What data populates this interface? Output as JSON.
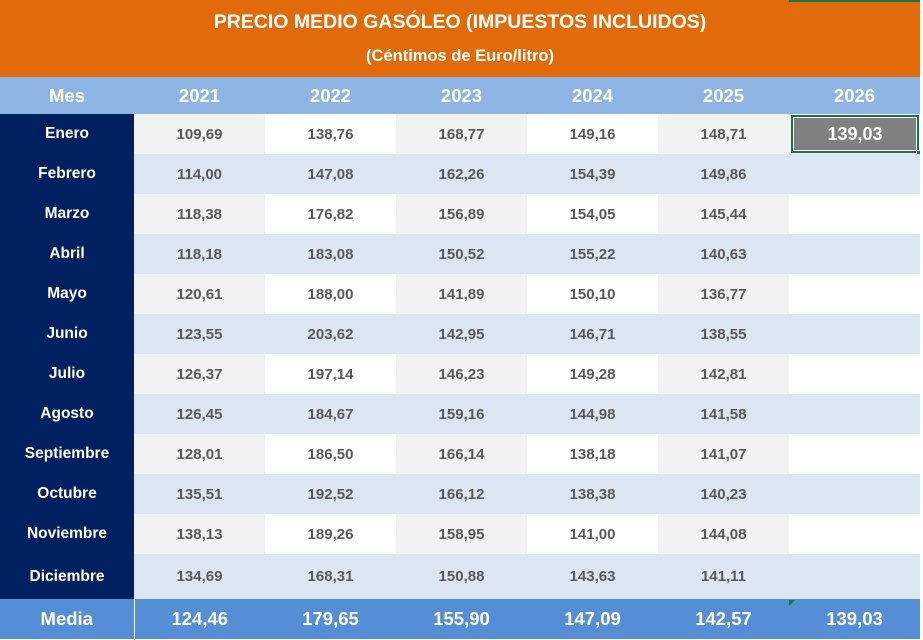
{
  "title": "PRECIO MEDIO GASÓLEO (IMPUESTOS INCLUIDOS)",
  "subtitle": "(Céntimos de Euro/litro)",
  "header": {
    "mes": "Mes",
    "years": [
      "2021",
      "2022",
      "2023",
      "2024",
      "2025",
      "2026"
    ]
  },
  "rows": [
    {
      "mes": "Enero",
      "values": [
        "109,69",
        "138,76",
        "168,77",
        "149,16",
        "148,71",
        "139,03"
      ]
    },
    {
      "mes": "Febrero",
      "values": [
        "114,00",
        "147,08",
        "162,26",
        "154,39",
        "149,86",
        ""
      ]
    },
    {
      "mes": "Marzo",
      "values": [
        "118,38",
        "176,82",
        "156,89",
        "154,05",
        "145,44",
        ""
      ]
    },
    {
      "mes": "Abril",
      "values": [
        "118,18",
        "183,08",
        "150,52",
        "155,22",
        "140,63",
        ""
      ]
    },
    {
      "mes": "Mayo",
      "values": [
        "120,61",
        "188,00",
        "141,89",
        "150,10",
        "136,77",
        ""
      ]
    },
    {
      "mes": "Junio",
      "values": [
        "123,55",
        "203,62",
        "142,95",
        "146,71",
        "138,55",
        ""
      ]
    },
    {
      "mes": "Julio",
      "values": [
        "126,37",
        "197,14",
        "146,23",
        "149,28",
        "142,81",
        ""
      ]
    },
    {
      "mes": "Agosto",
      "values": [
        "126,45",
        "184,67",
        "159,16",
        "144,98",
        "141,58",
        ""
      ]
    },
    {
      "mes": "Septiembre",
      "values": [
        "128,01",
        "186,50",
        "166,14",
        "138,18",
        "141,07",
        ""
      ]
    },
    {
      "mes": "Octubre",
      "values": [
        "135,51",
        "192,52",
        "166,12",
        "138,38",
        "140,23",
        ""
      ]
    },
    {
      "mes": "Noviembre",
      "values": [
        "138,13",
        "189,26",
        "158,95",
        "141,00",
        "144,08",
        ""
      ]
    },
    {
      "mes": "Diciembre",
      "values": [
        "134,69",
        "168,31",
        "150,88",
        "143,63",
        "141,11",
        ""
      ]
    }
  ],
  "media": {
    "label": "Media",
    "values": [
      "124,46",
      "179,65",
      "155,90",
      "147,09",
      "142,57",
      "139,03"
    ]
  },
  "selected_cell": {
    "row": "Enero",
    "year": "2026",
    "value": "139,03"
  },
  "colors": {
    "title_bg": "#e16b0b",
    "header_bg": "#8eb4e3",
    "month_col_bg": "#002060",
    "media_bg": "#558ed5",
    "band_light": "#dce6f2",
    "band_grey": "#f2f2f2",
    "selection": "#1e7145",
    "selected_fill": "#808080",
    "value_text": "#595959"
  }
}
